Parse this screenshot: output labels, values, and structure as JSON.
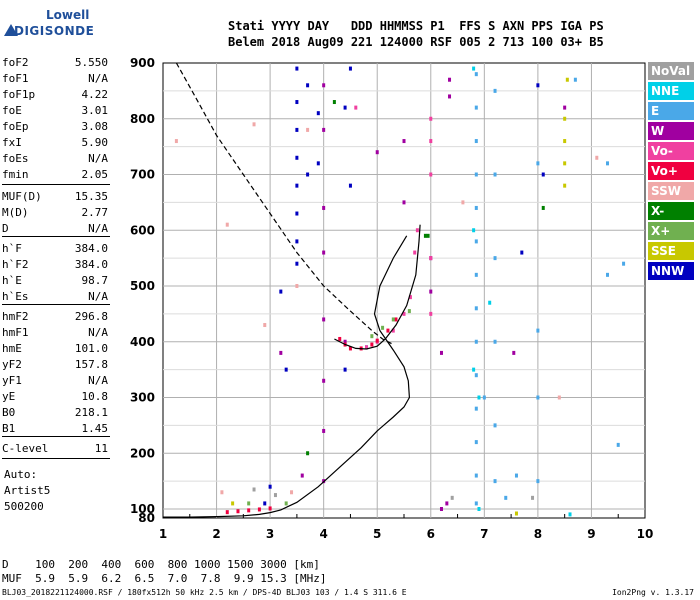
{
  "logo": {
    "line1": "Lowell",
    "line2": "DIGISONDE"
  },
  "header": {
    "row1": "Stati YYYY DAY   DDD HHMMSS P1  FFS S AXN PPS IGA PS",
    "row2": "Belem 2018 Aug09 221 124000 RSF 005 2 713 100 03+ B5"
  },
  "params": [
    {
      "key": "foF2",
      "value": "5.550"
    },
    {
      "key": "foF1",
      "value": "N/A"
    },
    {
      "key": "foF1p",
      "value": "4.22"
    },
    {
      "key": "foE",
      "value": "3.01"
    },
    {
      "key": "foEp",
      "value": "3.08"
    },
    {
      "key": "fxI",
      "value": "5.90"
    },
    {
      "key": "foEs",
      "value": "N/A"
    },
    {
      "key": "fmin",
      "value": "2.05"
    },
    {
      "key": "MUF(D)",
      "value": "15.35"
    },
    {
      "key": "M(D)",
      "value": "2.77"
    },
    {
      "key": "D",
      "value": "N/A"
    },
    {
      "key": "h`F",
      "value": "384.0"
    },
    {
      "key": "h`F2",
      "value": "384.0"
    },
    {
      "key": "h`E",
      "value": "98.7"
    },
    {
      "key": "h`Es",
      "value": "N/A"
    },
    {
      "key": "hmF2",
      "value": "296.8"
    },
    {
      "key": "hmF1",
      "value": "N/A"
    },
    {
      "key": "hmE",
      "value": "101.0"
    },
    {
      "key": "yF2",
      "value": "157.8"
    },
    {
      "key": "yF1",
      "value": "N/A"
    },
    {
      "key": "yE",
      "value": "10.8"
    },
    {
      "key": "B0",
      "value": "218.1"
    },
    {
      "key": "B1",
      "value": "1.45"
    },
    {
      "key": "C-level",
      "value": "11"
    }
  ],
  "auto": [
    "Auto:",
    "Artist5",
    "500200"
  ],
  "legend": [
    {
      "label": "NoVal",
      "color": "#a0a0a0"
    },
    {
      "label": "NNE",
      "color": "#00d0e8"
    },
    {
      "label": "E",
      "color": "#4aa8e8"
    },
    {
      "label": "W",
      "color": "#a000a0"
    },
    {
      "label": "Vo-",
      "color": "#f040a0"
    },
    {
      "label": "Vo+",
      "color": "#f00040"
    },
    {
      "label": "SSW",
      "color": "#f0a8a8"
    },
    {
      "label": "X-",
      "color": "#008000"
    },
    {
      "label": "X+",
      "color": "#70b050"
    },
    {
      "label": "SSE",
      "color": "#c8c800"
    },
    {
      "label": "NNW",
      "color": "#0000c0"
    }
  ],
  "dmuf": {
    "d_row": "D    100  200  400  600  800 1000 1500 3000 [km]",
    "muf_row": "MUF  5.9  5.9  6.2  6.5  7.0  7.8  9.9 15.3 [MHz]"
  },
  "footer": "BLJ03_2018221124000.RSF / 180fx512h 50 kHz 2.5 km / DPS-4D BLJ03 103 / 1.4 S 311.6 E",
  "version": "Ion2Png v. 1.3.17",
  "chart_data": {
    "type": "scatter",
    "x_ticks": [
      "1",
      "2",
      "3",
      "4",
      "5",
      "6",
      "7",
      "8",
      "9",
      "10"
    ],
    "y_ticks": [
      "80",
      "100",
      "200",
      "300",
      "400",
      "500",
      "600",
      "700",
      "800",
      "900"
    ],
    "xlim": [
      1,
      10
    ],
    "ylim": [
      80,
      900
    ],
    "grid": true,
    "legend_position": "right",
    "series": [
      {
        "name": "E",
        "color": "#4aa8e8",
        "points": [
          [
            6.85,
            880
          ],
          [
            6.85,
            820
          ],
          [
            6.85,
            760
          ],
          [
            6.85,
            700
          ],
          [
            6.85,
            640
          ],
          [
            6.85,
            580
          ],
          [
            6.85,
            520
          ],
          [
            6.85,
            460
          ],
          [
            6.85,
            400
          ],
          [
            6.85,
            340
          ],
          [
            6.85,
            280
          ],
          [
            6.85,
            220
          ],
          [
            6.85,
            160
          ],
          [
            6.85,
            110
          ],
          [
            7.2,
            850
          ],
          [
            7.2,
            700
          ],
          [
            7.2,
            550
          ],
          [
            7.2,
            400
          ],
          [
            7.2,
            250
          ],
          [
            7.2,
            150
          ],
          [
            7.0,
            300
          ],
          [
            7.4,
            120
          ],
          [
            8.0,
            720
          ],
          [
            8.0,
            420
          ],
          [
            8.0,
            300
          ],
          [
            8.0,
            150
          ],
          [
            8.7,
            870
          ],
          [
            9.3,
            720
          ],
          [
            9.6,
            540
          ],
          [
            9.5,
            215
          ],
          [
            7.6,
            160
          ],
          [
            9.3,
            520
          ]
        ]
      },
      {
        "name": "NNE",
        "color": "#00d0e8",
        "points": [
          [
            6.8,
            890
          ],
          [
            6.8,
            600
          ],
          [
            6.8,
            350
          ],
          [
            6.9,
            100
          ],
          [
            7.1,
            470
          ],
          [
            6.9,
            300
          ],
          [
            8.6,
            88
          ]
        ]
      },
      {
        "name": "W",
        "color": "#a000a0",
        "points": [
          [
            4.0,
            860
          ],
          [
            4.0,
            780
          ],
          [
            4.0,
            640
          ],
          [
            4.0,
            560
          ],
          [
            4.0,
            440
          ],
          [
            4.0,
            330
          ],
          [
            4.0,
            240
          ],
          [
            4.0,
            150
          ],
          [
            5.5,
            650
          ],
          [
            5.5,
            760
          ],
          [
            5.0,
            740
          ],
          [
            6.2,
            380
          ],
          [
            6.35,
            870
          ],
          [
            6.35,
            840
          ],
          [
            6.0,
            490
          ],
          [
            6.0,
            550
          ],
          [
            6.3,
            110
          ],
          [
            6.2,
            100
          ],
          [
            4.4,
            400
          ],
          [
            3.2,
            380
          ],
          [
            3.6,
            160
          ],
          [
            7.55,
            380
          ],
          [
            8.5,
            820
          ]
        ]
      },
      {
        "name": "NNW",
        "color": "#0000c0",
        "points": [
          [
            3.5,
            890
          ],
          [
            3.5,
            830
          ],
          [
            3.5,
            780
          ],
          [
            3.5,
            730
          ],
          [
            3.5,
            680
          ],
          [
            3.5,
            630
          ],
          [
            3.5,
            580
          ],
          [
            3.5,
            540
          ],
          [
            3.7,
            860
          ],
          [
            3.7,
            700
          ],
          [
            3.9,
            810
          ],
          [
            3.9,
            720
          ],
          [
            4.5,
            890
          ],
          [
            4.4,
            820
          ],
          [
            4.5,
            680
          ],
          [
            4.8,
            390
          ],
          [
            4.4,
            350
          ],
          [
            3.3,
            350
          ],
          [
            3.2,
            490
          ],
          [
            3.0,
            140
          ],
          [
            2.9,
            110
          ],
          [
            8.0,
            860
          ],
          [
            7.7,
            560
          ],
          [
            8.1,
            700
          ]
        ]
      },
      {
        "name": "Vo-",
        "color": "#f040a0",
        "points": [
          [
            5.75,
            600
          ],
          [
            5.7,
            560
          ],
          [
            5.62,
            480
          ],
          [
            5.5,
            450
          ],
          [
            5.3,
            420
          ],
          [
            5.0,
            400
          ],
          [
            4.8,
            390
          ],
          [
            6.0,
            760
          ],
          [
            6.0,
            800
          ],
          [
            6.0,
            700
          ],
          [
            6.0,
            550
          ],
          [
            6.0,
            450
          ],
          [
            4.6,
            820
          ]
        ]
      },
      {
        "name": "Vo+",
        "color": "#f00040",
        "points": [
          [
            4.3,
            405
          ],
          [
            4.4,
            395
          ],
          [
            4.5,
            388
          ],
          [
            4.7,
            388
          ],
          [
            4.9,
            395
          ],
          [
            5.0,
            402
          ],
          [
            5.2,
            420
          ],
          [
            5.35,
            440
          ],
          [
            2.2,
            93
          ],
          [
            2.4,
            95
          ],
          [
            2.6,
            97
          ],
          [
            2.8,
            99
          ],
          [
            3.0,
            101
          ]
        ]
      },
      {
        "name": "SSW",
        "color": "#f0a8a8",
        "points": [
          [
            1.25,
            760
          ],
          [
            2.2,
            610
          ],
          [
            2.7,
            790
          ],
          [
            2.9,
            430
          ],
          [
            3.5,
            500
          ],
          [
            3.7,
            780
          ],
          [
            6.6,
            650
          ],
          [
            8.4,
            300
          ],
          [
            9.1,
            730
          ],
          [
            2.1,
            130
          ],
          [
            3.4,
            130
          ]
        ]
      },
      {
        "name": "X-",
        "color": "#008000",
        "points": [
          [
            5.9,
            590
          ],
          [
            5.95,
            590
          ],
          [
            4.2,
            830
          ],
          [
            3.7,
            200
          ],
          [
            8.1,
            640
          ]
        ]
      },
      {
        "name": "X+",
        "color": "#70b050",
        "points": [
          [
            4.9,
            410
          ],
          [
            5.1,
            425
          ],
          [
            5.3,
            440
          ],
          [
            5.6,
            455
          ],
          [
            2.6,
            110
          ],
          [
            3.3,
            110
          ]
        ]
      },
      {
        "name": "SSE",
        "color": "#c8c800",
        "points": [
          [
            8.5,
            800
          ],
          [
            8.5,
            760
          ],
          [
            8.5,
            720
          ],
          [
            8.5,
            680
          ],
          [
            8.55,
            870
          ],
          [
            7.6,
            90
          ],
          [
            2.3,
            110
          ]
        ]
      },
      {
        "name": "NoVal",
        "color": "#a0a0a0",
        "points": [
          [
            6.4,
            120
          ],
          [
            7.9,
            120
          ],
          [
            2.7,
            135
          ],
          [
            3.1,
            125
          ]
        ]
      }
    ],
    "curves": [
      {
        "name": "profile",
        "style": "solid",
        "points": [
          [
            1.0,
            82
          ],
          [
            1.5,
            82
          ],
          [
            2.0,
            83
          ],
          [
            2.5,
            85
          ],
          [
            2.8,
            88
          ],
          [
            3.0,
            92
          ],
          [
            3.2,
            98
          ],
          [
            3.5,
            112
          ],
          [
            3.9,
            140
          ],
          [
            4.3,
            175
          ],
          [
            4.7,
            210
          ],
          [
            5.0,
            240
          ],
          [
            5.3,
            265
          ],
          [
            5.5,
            283
          ],
          [
            5.6,
            300
          ],
          [
            5.58,
            330
          ],
          [
            5.5,
            355
          ],
          [
            5.3,
            385
          ],
          [
            5.05,
            420
          ],
          [
            4.95,
            450
          ],
          [
            5.05,
            500
          ],
          [
            5.3,
            550
          ],
          [
            5.55,
            590
          ]
        ]
      },
      {
        "name": "dashed",
        "style": "dashed",
        "points": [
          [
            1.25,
            900
          ],
          [
            1.6,
            840
          ],
          [
            2.0,
            770
          ],
          [
            2.5,
            700
          ],
          [
            3.0,
            630
          ],
          [
            3.5,
            560
          ],
          [
            4.0,
            500
          ],
          [
            4.5,
            455
          ],
          [
            4.9,
            420
          ],
          [
            5.1,
            405
          ],
          [
            5.3,
            395
          ]
        ]
      },
      {
        "name": "trace",
        "style": "solid",
        "points": [
          [
            4.2,
            405
          ],
          [
            4.4,
            395
          ],
          [
            4.6,
            388
          ],
          [
            4.8,
            387
          ],
          [
            5.0,
            392
          ],
          [
            5.15,
            405
          ],
          [
            5.35,
            430
          ],
          [
            5.55,
            465
          ],
          [
            5.72,
            520
          ],
          [
            5.78,
            580
          ],
          [
            5.8,
            610
          ]
        ]
      }
    ]
  }
}
